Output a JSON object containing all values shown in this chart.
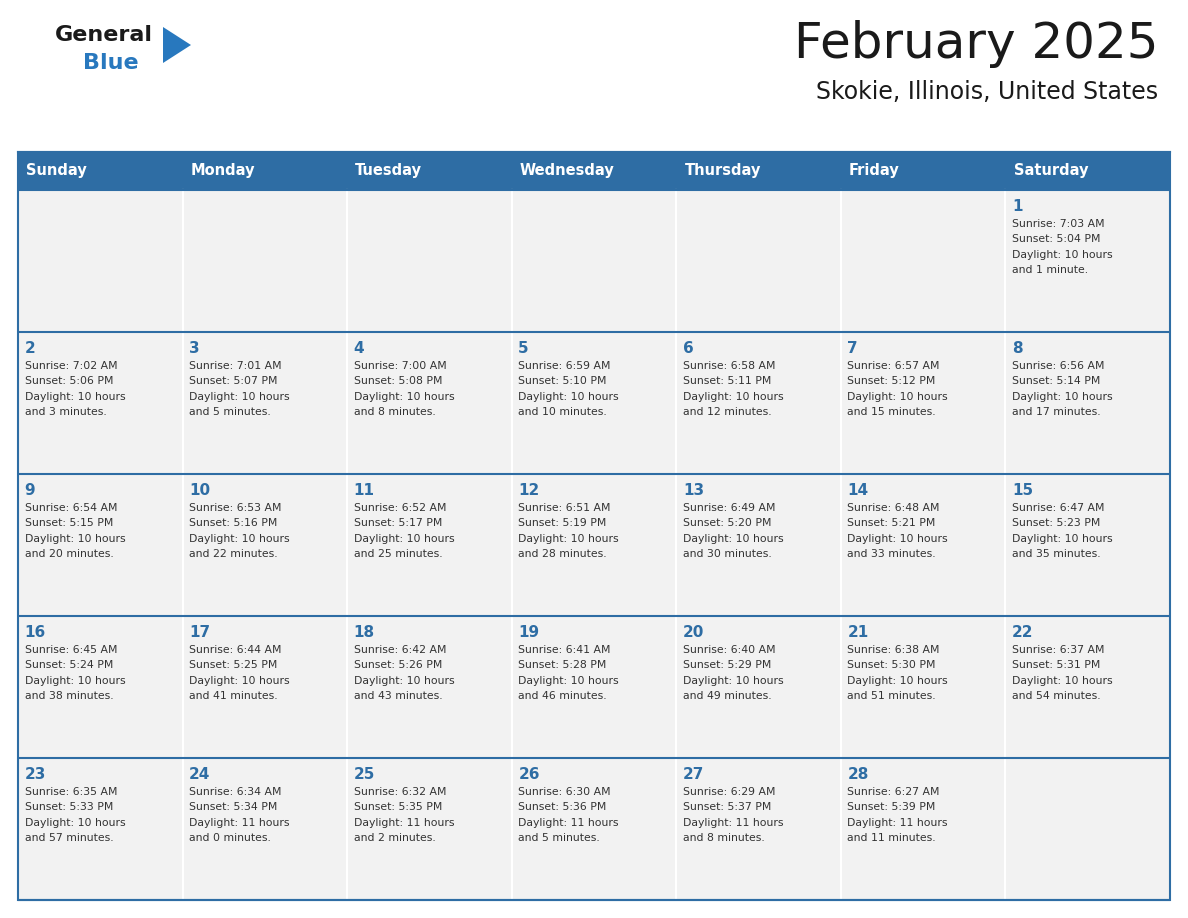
{
  "title": "February 2025",
  "subtitle": "Skokie, Illinois, United States",
  "header_bg": "#2E6DA4",
  "header_text": "#FFFFFF",
  "cell_bg": "#F2F2F2",
  "border_color": "#2E6DA4",
  "text_color": "#333333",
  "day_number_color": "#2E6DA4",
  "days_of_week": [
    "Sunday",
    "Monday",
    "Tuesday",
    "Wednesday",
    "Thursday",
    "Friday",
    "Saturday"
  ],
  "calendar_data": [
    [
      {
        "day": "",
        "info": ""
      },
      {
        "day": "",
        "info": ""
      },
      {
        "day": "",
        "info": ""
      },
      {
        "day": "",
        "info": ""
      },
      {
        "day": "",
        "info": ""
      },
      {
        "day": "",
        "info": ""
      },
      {
        "day": "1",
        "info": "Sunrise: 7:03 AM\nSunset: 5:04 PM\nDaylight: 10 hours\nand 1 minute."
      }
    ],
    [
      {
        "day": "2",
        "info": "Sunrise: 7:02 AM\nSunset: 5:06 PM\nDaylight: 10 hours\nand 3 minutes."
      },
      {
        "day": "3",
        "info": "Sunrise: 7:01 AM\nSunset: 5:07 PM\nDaylight: 10 hours\nand 5 minutes."
      },
      {
        "day": "4",
        "info": "Sunrise: 7:00 AM\nSunset: 5:08 PM\nDaylight: 10 hours\nand 8 minutes."
      },
      {
        "day": "5",
        "info": "Sunrise: 6:59 AM\nSunset: 5:10 PM\nDaylight: 10 hours\nand 10 minutes."
      },
      {
        "day": "6",
        "info": "Sunrise: 6:58 AM\nSunset: 5:11 PM\nDaylight: 10 hours\nand 12 minutes."
      },
      {
        "day": "7",
        "info": "Sunrise: 6:57 AM\nSunset: 5:12 PM\nDaylight: 10 hours\nand 15 minutes."
      },
      {
        "day": "8",
        "info": "Sunrise: 6:56 AM\nSunset: 5:14 PM\nDaylight: 10 hours\nand 17 minutes."
      }
    ],
    [
      {
        "day": "9",
        "info": "Sunrise: 6:54 AM\nSunset: 5:15 PM\nDaylight: 10 hours\nand 20 minutes."
      },
      {
        "day": "10",
        "info": "Sunrise: 6:53 AM\nSunset: 5:16 PM\nDaylight: 10 hours\nand 22 minutes."
      },
      {
        "day": "11",
        "info": "Sunrise: 6:52 AM\nSunset: 5:17 PM\nDaylight: 10 hours\nand 25 minutes."
      },
      {
        "day": "12",
        "info": "Sunrise: 6:51 AM\nSunset: 5:19 PM\nDaylight: 10 hours\nand 28 minutes."
      },
      {
        "day": "13",
        "info": "Sunrise: 6:49 AM\nSunset: 5:20 PM\nDaylight: 10 hours\nand 30 minutes."
      },
      {
        "day": "14",
        "info": "Sunrise: 6:48 AM\nSunset: 5:21 PM\nDaylight: 10 hours\nand 33 minutes."
      },
      {
        "day": "15",
        "info": "Sunrise: 6:47 AM\nSunset: 5:23 PM\nDaylight: 10 hours\nand 35 minutes."
      }
    ],
    [
      {
        "day": "16",
        "info": "Sunrise: 6:45 AM\nSunset: 5:24 PM\nDaylight: 10 hours\nand 38 minutes."
      },
      {
        "day": "17",
        "info": "Sunrise: 6:44 AM\nSunset: 5:25 PM\nDaylight: 10 hours\nand 41 minutes."
      },
      {
        "day": "18",
        "info": "Sunrise: 6:42 AM\nSunset: 5:26 PM\nDaylight: 10 hours\nand 43 minutes."
      },
      {
        "day": "19",
        "info": "Sunrise: 6:41 AM\nSunset: 5:28 PM\nDaylight: 10 hours\nand 46 minutes."
      },
      {
        "day": "20",
        "info": "Sunrise: 6:40 AM\nSunset: 5:29 PM\nDaylight: 10 hours\nand 49 minutes."
      },
      {
        "day": "21",
        "info": "Sunrise: 6:38 AM\nSunset: 5:30 PM\nDaylight: 10 hours\nand 51 minutes."
      },
      {
        "day": "22",
        "info": "Sunrise: 6:37 AM\nSunset: 5:31 PM\nDaylight: 10 hours\nand 54 minutes."
      }
    ],
    [
      {
        "day": "23",
        "info": "Sunrise: 6:35 AM\nSunset: 5:33 PM\nDaylight: 10 hours\nand 57 minutes."
      },
      {
        "day": "24",
        "info": "Sunrise: 6:34 AM\nSunset: 5:34 PM\nDaylight: 11 hours\nand 0 minutes."
      },
      {
        "day": "25",
        "info": "Sunrise: 6:32 AM\nSunset: 5:35 PM\nDaylight: 11 hours\nand 2 minutes."
      },
      {
        "day": "26",
        "info": "Sunrise: 6:30 AM\nSunset: 5:36 PM\nDaylight: 11 hours\nand 5 minutes."
      },
      {
        "day": "27",
        "info": "Sunrise: 6:29 AM\nSunset: 5:37 PM\nDaylight: 11 hours\nand 8 minutes."
      },
      {
        "day": "28",
        "info": "Sunrise: 6:27 AM\nSunset: 5:39 PM\nDaylight: 11 hours\nand 11 minutes."
      },
      {
        "day": "",
        "info": ""
      }
    ]
  ],
  "logo_general_color": "#1a1a1a",
  "logo_blue_color": "#2878BE",
  "logo_triangle_color": "#2878BE",
  "fig_width": 11.88,
  "fig_height": 9.18,
  "dpi": 100
}
